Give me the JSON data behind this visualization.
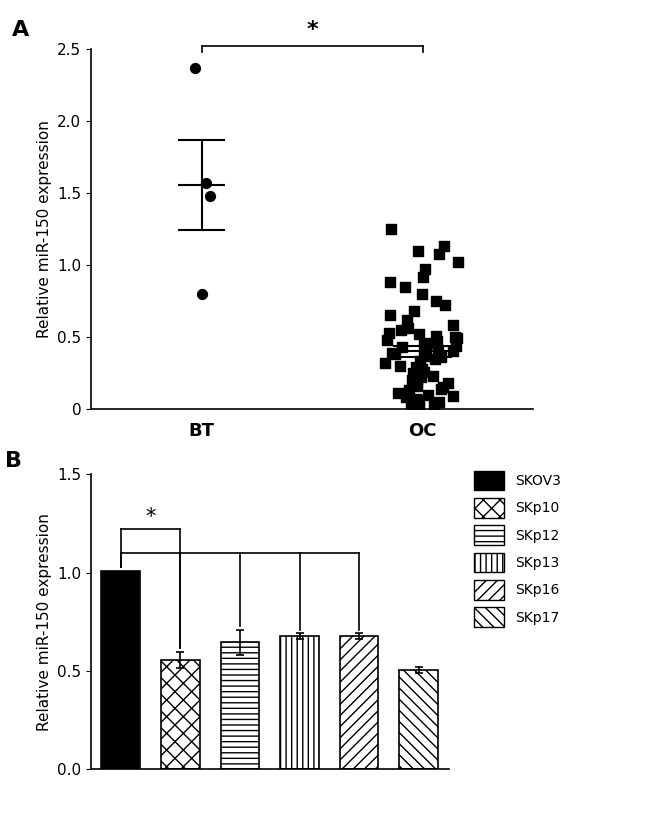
{
  "panel_A": {
    "BT_points": [
      2.37,
      1.57,
      1.48,
      0.8
    ],
    "BT_mean": 1.555,
    "BT_sem_upper": 1.87,
    "BT_sem_lower": 1.24,
    "OC_points": [
      1.25,
      1.13,
      1.1,
      1.08,
      1.02,
      0.97,
      0.92,
      0.88,
      0.85,
      0.8,
      0.75,
      0.72,
      0.68,
      0.65,
      0.62,
      0.58,
      0.55,
      0.52,
      0.5,
      0.48,
      0.46,
      0.44,
      0.43,
      0.42,
      0.4,
      0.38,
      0.37,
      0.36,
      0.35,
      0.33,
      0.3,
      0.28,
      0.25,
      0.22,
      0.2,
      0.18,
      0.15,
      0.13,
      0.1,
      0.08,
      0.06,
      0.04,
      0.03,
      0.02,
      0.01,
      0.05,
      0.07,
      0.09,
      0.11,
      0.14,
      0.16,
      0.19,
      0.23,
      0.26,
      0.29,
      0.32,
      0.39,
      0.41,
      0.45,
      0.47,
      0.49,
      0.51,
      0.53,
      0.56
    ],
    "OC_mean": 0.4,
    "OC_sem_upper": 0.44,
    "OC_sem_lower": 0.36,
    "ylim": [
      0,
      2.5
    ],
    "yticks": [
      0.0,
      0.5,
      1.0,
      1.5,
      2.0,
      2.5
    ],
    "xlabel_BT": "BT",
    "xlabel_OC": "OC",
    "ylabel": "Relative miR-150 expression",
    "panel_label": "A"
  },
  "panel_B": {
    "categories": [
      "SKOV3",
      "SKp10",
      "SKp12",
      "SKp13",
      "SKp16",
      "SKp17"
    ],
    "values": [
      1.01,
      0.555,
      0.645,
      0.675,
      0.675,
      0.505
    ],
    "errors": [
      0.0,
      0.04,
      0.065,
      0.015,
      0.015,
      0.015
    ],
    "ylim": [
      0,
      1.5
    ],
    "yticks": [
      0.0,
      0.5,
      1.0,
      1.5
    ],
    "ylabel": "Relative miR-150 expression",
    "panel_label": "B",
    "legend_labels": [
      "SKOV3",
      "SKp10",
      "SKp12",
      "SKp13",
      "SKp16",
      "SKp17"
    ]
  }
}
